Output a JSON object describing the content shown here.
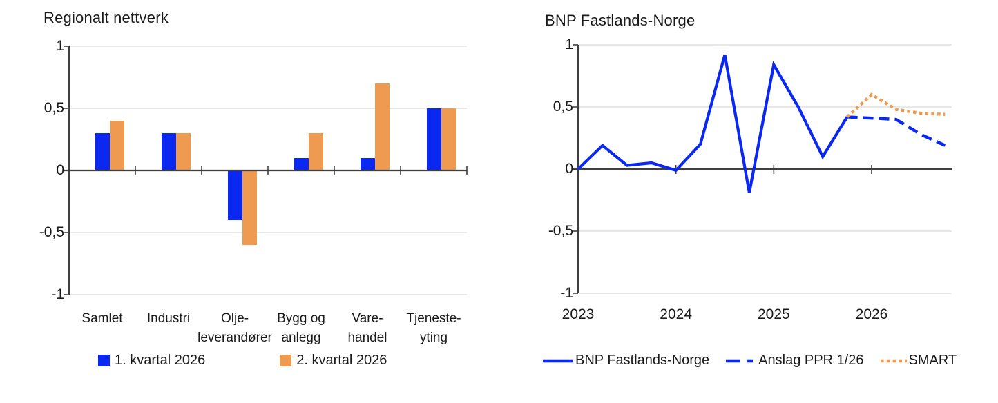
{
  "page": {
    "background": "#ffffff"
  },
  "colors": {
    "blue": "#0a28f0",
    "orange": "#ee9a50",
    "gridline": "#d9d9d9",
    "axis": "#3f3f3f",
    "text": "#1a1a1a"
  },
  "chart_data": [
    {
      "type": "bar",
      "title": "Regionalt nettverk",
      "categories": [
        "Samlet",
        "Industri",
        "Olje-\nleverandører",
        "Bygg og\nanlegg",
        "Vare-\nhandel",
        "Tjeneste-\nyting"
      ],
      "series": [
        {
          "name": "1. kvartal 2026",
          "color": "#0a28f0",
          "values": [
            0.3,
            0.3,
            -0.4,
            0.1,
            0.1,
            0.5
          ]
        },
        {
          "name": "2. kvartal 2026",
          "color": "#ee9a50",
          "values": [
            0.4,
            0.3,
            -0.6,
            0.3,
            0.7,
            0.5
          ]
        }
      ],
      "xlabel": "",
      "ylabel": "",
      "ylim": [
        -1,
        1
      ],
      "y_tick_labels": [
        "1",
        "0,5",
        "0",
        "-0,5",
        "-1"
      ],
      "y_tick_values": [
        1,
        0.5,
        0,
        -0.5,
        -1
      ],
      "grid": true,
      "legend_position": "bottom"
    },
    {
      "type": "line",
      "title": "BNP Fastlands-Norge",
      "xlabel": "",
      "ylabel": "",
      "xlim": [
        2023,
        2026.83
      ],
      "ylim": [
        -1,
        1
      ],
      "x_tick_labels": [
        "2023",
        "2024",
        "2025",
        "2026"
      ],
      "x_tick_values": [
        2023,
        2024,
        2025,
        2026
      ],
      "y_tick_labels": [
        "1",
        "0,5",
        "0",
        "-0,5",
        "-1"
      ],
      "y_tick_values": [
        1,
        0.5,
        0,
        -0.5,
        -1
      ],
      "grid": true,
      "legend_position": "bottom",
      "series": [
        {
          "name": "BNP Fastlands-Norge",
          "style": "solid",
          "color": "#0a28f0",
          "x": [
            2023.0,
            2023.25,
            2023.5,
            2023.75,
            2024.0,
            2024.25,
            2024.5,
            2024.75,
            2025.0,
            2025.25,
            2025.5,
            2025.75
          ],
          "values": [
            0.0,
            0.19,
            0.03,
            0.05,
            -0.01,
            0.2,
            0.92,
            -0.19,
            0.84,
            0.5,
            0.1,
            0.42
          ]
        },
        {
          "name": "Anslag PPR 1/26",
          "style": "dashed",
          "color": "#0a28f0",
          "x": [
            2025.75,
            2026.0,
            2026.25,
            2026.5,
            2026.75
          ],
          "values": [
            0.42,
            0.41,
            0.4,
            0.28,
            0.19
          ]
        },
        {
          "name": "SMART",
          "style": "dotted",
          "color": "#ee9a50",
          "x": [
            2025.75,
            2026.0,
            2026.25,
            2026.5,
            2026.75
          ],
          "values": [
            0.42,
            0.6,
            0.48,
            0.45,
            0.44
          ]
        }
      ]
    }
  ]
}
